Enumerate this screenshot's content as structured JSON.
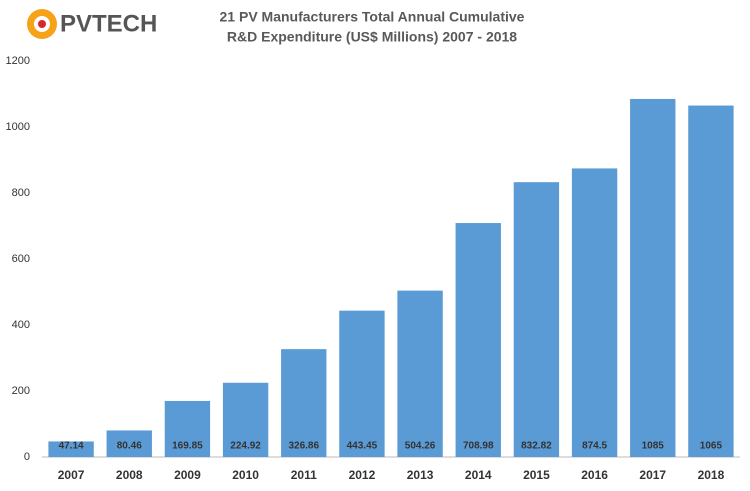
{
  "logo": "PVTECH",
  "chart_data": {
    "type": "bar",
    "title": [
      "21 PV Manufacturers  Total Annual Cumulative",
      "R&D Expenditure (US$ Millions) 2007 - 2018"
    ],
    "categories": [
      "2007",
      "2008",
      "2009",
      "2010",
      "2011",
      "2012",
      "2013",
      "2014",
      "2015",
      "2016",
      "2017",
      "2018"
    ],
    "values": [
      47.14,
      80.46,
      169.85,
      224.92,
      326.86,
      443.45,
      504.26,
      708.98,
      832.82,
      874.5,
      1085,
      1065
    ],
    "color": "#5b9bd5",
    "ylim": [
      0,
      1200
    ],
    "yticks": [
      0,
      200,
      400,
      600,
      800,
      1000,
      1200
    ],
    "grid": false
  }
}
